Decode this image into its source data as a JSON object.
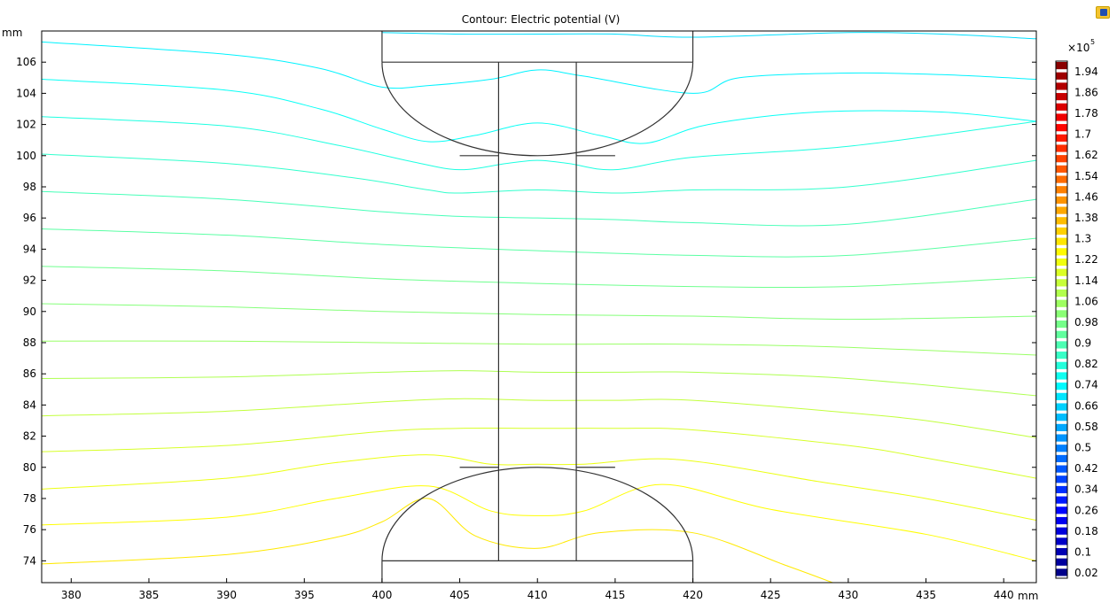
{
  "chart_data": {
    "type": "contour",
    "title": "Contour: Electric potential (V)",
    "x_unit": "mm",
    "y_unit": "mm",
    "xlim": [
      378.1,
      442.1
    ],
    "ylim": [
      72.6,
      108.0
    ],
    "x_ticks": [
      380,
      385,
      390,
      395,
      400,
      405,
      410,
      415,
      420,
      425,
      430,
      435,
      440
    ],
    "y_ticks": [
      74,
      76,
      78,
      80,
      82,
      84,
      86,
      88,
      90,
      92,
      94,
      96,
      98,
      100,
      102,
      104,
      106
    ],
    "colorbar": {
      "multiplier": "×10",
      "exponent": "5",
      "min": 0.0,
      "max": 1.98,
      "tick_labels": [
        "1.94",
        "1.86",
        "1.78",
        "1.7",
        "1.62",
        "1.54",
        "1.46",
        "1.38",
        "1.3",
        "1.22",
        "1.14",
        "1.06",
        "0.98",
        "0.9",
        "0.82",
        "0.74",
        "0.66",
        "0.58",
        "0.5",
        "0.42",
        "0.34",
        "0.26",
        "0.18",
        "0.1",
        "0.02"
      ]
    },
    "contour_lines": [
      {
        "level": 1.28,
        "points": [
          [
            378.1,
            73.8
          ],
          [
            390,
            74.4
          ],
          [
            397,
            75.5
          ],
          [
            400,
            76.5
          ],
          [
            403,
            78.0
          ],
          [
            406,
            75.6
          ],
          [
            410,
            74.8
          ],
          [
            414,
            75.8
          ],
          [
            420,
            75.8
          ],
          [
            426,
            73.7
          ],
          [
            429,
            72.6
          ]
        ]
      },
      {
        "level": 1.24,
        "points": [
          [
            378.1,
            76.3
          ],
          [
            390,
            76.8
          ],
          [
            397,
            78.0
          ],
          [
            403,
            78.8
          ],
          [
            407,
            77.2
          ],
          [
            410,
            76.9
          ],
          [
            413,
            77.2
          ],
          [
            418,
            78.9
          ],
          [
            425,
            77.3
          ],
          [
            435,
            75.7
          ],
          [
            442.1,
            74.0
          ]
        ]
      },
      {
        "level": 1.2,
        "points": [
          [
            378.1,
            78.6
          ],
          [
            390,
            79.3
          ],
          [
            397,
            80.3
          ],
          [
            403,
            80.8
          ],
          [
            407,
            80.2
          ],
          [
            410,
            80.2
          ],
          [
            413,
            80.2
          ],
          [
            419,
            80.5
          ],
          [
            428,
            79.1
          ],
          [
            435,
            78.0
          ],
          [
            442.1,
            76.6
          ]
        ]
      },
      {
        "level": 1.16,
        "points": [
          [
            378.1,
            81.0
          ],
          [
            390,
            81.4
          ],
          [
            400,
            82.3
          ],
          [
            405,
            82.5
          ],
          [
            410,
            82.5
          ],
          [
            415,
            82.5
          ],
          [
            420,
            82.4
          ],
          [
            430,
            81.4
          ],
          [
            435,
            80.6
          ],
          [
            442.1,
            79.3
          ]
        ]
      },
      {
        "level": 1.12,
        "points": [
          [
            378.1,
            83.3
          ],
          [
            390,
            83.6
          ],
          [
            400,
            84.2
          ],
          [
            405,
            84.4
          ],
          [
            410,
            84.3
          ],
          [
            415,
            84.3
          ],
          [
            420,
            84.3
          ],
          [
            430,
            83.5
          ],
          [
            435,
            83.0
          ],
          [
            442.1,
            81.9
          ]
        ]
      },
      {
        "level": 1.08,
        "points": [
          [
            378.1,
            85.7
          ],
          [
            390,
            85.8
          ],
          [
            400,
            86.1
          ],
          [
            405,
            86.2
          ],
          [
            410,
            86.1
          ],
          [
            415,
            86.1
          ],
          [
            420,
            86.1
          ],
          [
            430,
            85.7
          ],
          [
            442.1,
            84.6
          ]
        ]
      },
      {
        "level": 1.04,
        "points": [
          [
            378.1,
            88.1
          ],
          [
            390,
            88.1
          ],
          [
            400,
            88.0
          ],
          [
            410,
            87.9
          ],
          [
            420,
            87.9
          ],
          [
            430,
            87.7
          ],
          [
            442.1,
            87.2
          ]
        ]
      },
      {
        "level": 1.0,
        "points": [
          [
            378.1,
            90.5
          ],
          [
            390,
            90.3
          ],
          [
            400,
            90.0
          ],
          [
            410,
            89.8
          ],
          [
            420,
            89.7
          ],
          [
            430,
            89.5
          ],
          [
            442.1,
            89.7
          ]
        ]
      },
      {
        "level": 0.96,
        "points": [
          [
            378.1,
            92.9
          ],
          [
            390,
            92.6
          ],
          [
            400,
            92.1
          ],
          [
            410,
            91.8
          ],
          [
            420,
            91.6
          ],
          [
            430,
            91.6
          ],
          [
            442.1,
            92.2
          ]
        ]
      },
      {
        "level": 0.92,
        "points": [
          [
            378.1,
            95.3
          ],
          [
            390,
            94.9
          ],
          [
            400,
            94.3
          ],
          [
            410,
            93.9
          ],
          [
            420,
            93.6
          ],
          [
            430,
            93.6
          ],
          [
            442.1,
            94.7
          ]
        ]
      },
      {
        "level": 0.88,
        "points": [
          [
            378.1,
            97.7
          ],
          [
            390,
            97.2
          ],
          [
            400,
            96.4
          ],
          [
            405,
            96.1
          ],
          [
            410,
            96.0
          ],
          [
            415,
            95.9
          ],
          [
            420,
            95.7
          ],
          [
            430,
            95.6
          ],
          [
            442.1,
            97.2
          ]
        ]
      },
      {
        "level": 0.84,
        "points": [
          [
            378.1,
            100.1
          ],
          [
            390,
            99.5
          ],
          [
            398,
            98.6
          ],
          [
            403,
            97.8
          ],
          [
            405,
            97.6
          ],
          [
            410,
            97.8
          ],
          [
            415,
            97.6
          ],
          [
            420,
            97.8
          ],
          [
            430,
            98.0
          ],
          [
            442.1,
            99.7
          ]
        ]
      },
      {
        "level": 0.8,
        "points": [
          [
            378.1,
            102.5
          ],
          [
            390,
            101.9
          ],
          [
            397,
            100.7
          ],
          [
            402,
            99.6
          ],
          [
            405,
            99.1
          ],
          [
            408,
            99.5
          ],
          [
            410,
            99.7
          ],
          [
            412,
            99.5
          ],
          [
            415,
            99.1
          ],
          [
            420,
            99.9
          ],
          [
            430,
            100.6
          ],
          [
            442.1,
            102.2
          ]
        ]
      },
      {
        "level": 0.76,
        "points": [
          [
            378.1,
            104.9
          ],
          [
            390,
            104.2
          ],
          [
            396,
            103.0
          ],
          [
            400,
            101.7
          ],
          [
            403,
            100.9
          ],
          [
            406,
            101.3
          ],
          [
            410,
            102.1
          ],
          [
            414,
            101.3
          ],
          [
            417,
            100.8
          ],
          [
            421,
            102.0
          ],
          [
            428,
            102.8
          ],
          [
            436,
            102.8
          ],
          [
            442.1,
            102.2
          ]
        ]
      },
      {
        "level": 0.72,
        "points": [
          [
            378.1,
            107.3
          ],
          [
            390,
            106.5
          ],
          [
            396,
            105.6
          ],
          [
            400,
            104.4
          ],
          [
            403,
            104.5
          ],
          [
            407,
            104.9
          ],
          [
            410,
            105.5
          ],
          [
            413,
            105.1
          ],
          [
            420,
            104.0
          ],
          [
            423,
            105.0
          ],
          [
            430,
            105.3
          ],
          [
            436,
            105.2
          ],
          [
            442.1,
            104.9
          ]
        ]
      },
      {
        "level": 0.68,
        "points": [
          [
            400,
            107.9
          ],
          [
            405,
            107.8
          ],
          [
            410,
            107.8
          ],
          [
            415,
            107.8
          ],
          [
            420,
            107.6
          ],
          [
            430,
            107.9
          ],
          [
            436,
            107.8
          ],
          [
            442.1,
            107.5
          ]
        ]
      }
    ]
  }
}
